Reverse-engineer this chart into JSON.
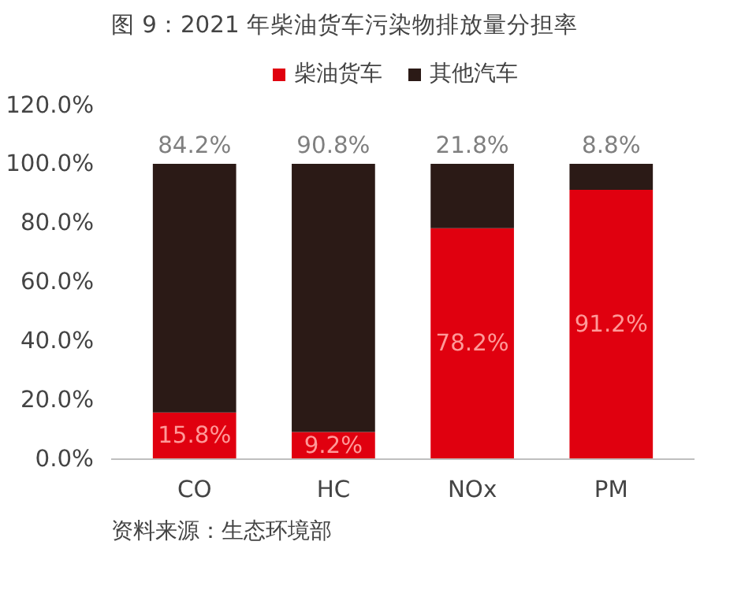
{
  "chart_data": {
    "type": "bar",
    "title": "图 9：2021 年柴油货车污染物排放量分担率",
    "categories": [
      "CO",
      "HC",
      "NOx",
      "PM"
    ],
    "stacked": true,
    "legend": "top",
    "series": [
      {
        "name": "柴油货车",
        "color": "#e0000f",
        "values": [
          15.8,
          9.2,
          78.2,
          91.2
        ],
        "value_labels": [
          "15.8%",
          "9.2%",
          "78.2%",
          "91.2%"
        ]
      },
      {
        "name": "其他汽车",
        "color": "#2b1a16",
        "values": [
          84.2,
          90.8,
          21.8,
          8.8
        ],
        "value_labels": [
          "84.2%",
          "90.8%",
          "21.8%",
          "8.8%"
        ]
      }
    ],
    "ylim": [
      0,
      120
    ],
    "yticks": [
      {
        "value": 0,
        "label": "0.0%"
      },
      {
        "value": 20,
        "label": "20.0%"
      },
      {
        "value": 40,
        "label": "40.0%"
      },
      {
        "value": 60,
        "label": "60.0%"
      },
      {
        "value": 80,
        "label": "80.0%"
      },
      {
        "value": 100,
        "label": "100.0%"
      },
      {
        "value": 120,
        "label": "120.0%"
      }
    ],
    "grid": false,
    "annotations": [
      "资料来源：生态环境部"
    ]
  }
}
